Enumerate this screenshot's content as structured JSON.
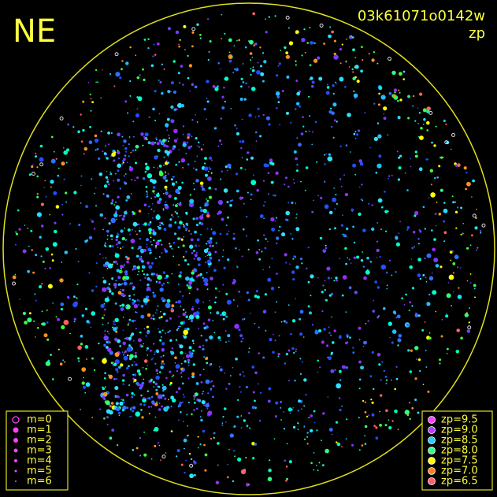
{
  "header": {
    "corner": "NE",
    "image_id": "03k61071o0142w",
    "mode": "zp"
  },
  "magnitude_legend": [
    "m=0",
    "m=1",
    "m=2",
    "m=3",
    "m=4",
    "m=5",
    "m=6"
  ],
  "zp_legend": [
    {
      "label": "zp=9.5",
      "color": "#ff40ff"
    },
    {
      "label": "zp=9.0",
      "color": "#b040ff"
    },
    {
      "label": "zp=8.5",
      "color": "#20d0ff"
    },
    {
      "label": "zp=8.0",
      "color": "#30ff90"
    },
    {
      "label": "zp=7.5",
      "color": "#ffff00"
    },
    {
      "label": "zp=7.0",
      "color": "#ff8020"
    },
    {
      "label": "zp=6.5",
      "color": "#ff6070"
    }
  ]
}
